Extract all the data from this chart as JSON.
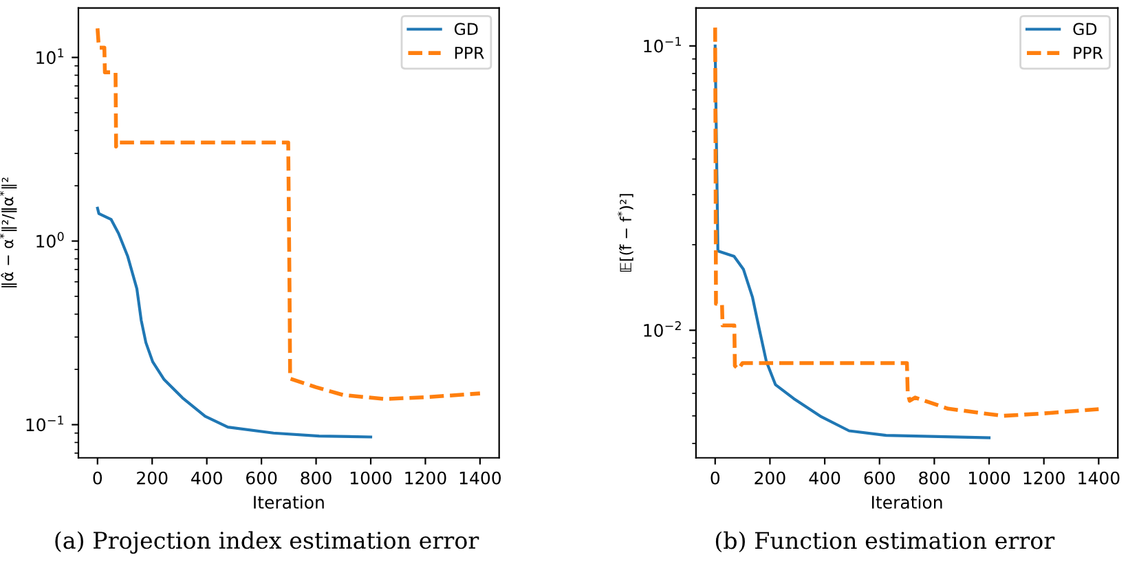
{
  "chart_data": [
    {
      "type": "line",
      "xlabel": "Iteration",
      "ylabel": "‖α̂ − α$^{*}$‖²/‖α$^{*}$‖²",
      "log": "y",
      "grid": false,
      "legend": "top right",
      "xlim": [
        -70,
        1470
      ],
      "xticks": [
        0,
        200,
        400,
        600,
        800,
        1000,
        1200,
        1400
      ],
      "ylim": [
        0.066,
        18.6
      ],
      "yticks": [
        {
          "value": 0.1,
          "label": "10$^{−1}$"
        },
        {
          "value": 1,
          "label": "10$^{0}$"
        },
        {
          "value": 10,
          "label": "10$^{1}$"
        }
      ],
      "series": [
        {
          "name": "GD",
          "color": "#1f77b4",
          "line_style": "solid",
          "x": [
            0,
            5,
            50,
            77,
            110,
            144,
            160,
            177,
            202,
            244,
            311,
            394,
            477,
            644,
            811,
            1000
          ],
          "values": [
            1.51,
            1.41,
            1.31,
            1.1,
            0.83,
            0.55,
            0.37,
            0.28,
            0.22,
            0.176,
            0.14,
            0.111,
            0.097,
            0.09,
            0.0867,
            0.0857
          ]
        },
        {
          "name": "PPR",
          "color": "#ff7f0e",
          "line_style": "dashed",
          "x": [
            0,
            5,
            25,
            27,
            66,
            68,
            70,
            698,
            703,
            705,
            800,
            900,
            1050,
            1200,
            1400
          ],
          "values": [
            14.4,
            11.3,
            11.3,
            8.3,
            8.3,
            3.27,
            3.44,
            3.44,
            0.5,
            0.178,
            0.16,
            0.145,
            0.138,
            0.141,
            0.148
          ]
        }
      ],
      "annotations": [
        "(a) Projection index estimation error"
      ]
    },
    {
      "type": "line",
      "xlabel": "Iteration",
      "ylabel": "𝔼[(f̂ − f$^{*}$)²]",
      "log": "y",
      "grid": false,
      "legend": "top right",
      "xlim": [
        -70,
        1470
      ],
      "xticks": [
        0,
        200,
        400,
        600,
        800,
        1000,
        1200,
        1400
      ],
      "ylim": [
        0.00356,
        0.136
      ],
      "yticks": [
        {
          "value": 0.01,
          "label": "10$^{−2}$"
        },
        {
          "value": 0.1,
          "label": "10$^{−1}$"
        }
      ],
      "series": [
        {
          "name": "GD",
          "color": "#1f77b4",
          "line_style": "solid",
          "x": [
            0,
            10,
            69,
            103,
            136,
            161,
            187,
            220,
            287,
            388,
            489,
            624,
            1000
          ],
          "values": [
            0.1,
            0.019,
            0.0182,
            0.0164,
            0.0131,
            0.0101,
            0.00776,
            0.00644,
            0.00575,
            0.00496,
            0.00443,
            0.00427,
            0.00419
          ]
        },
        {
          "name": "PPR",
          "color": "#ff7f0e",
          "line_style": "dashed",
          "x": [
            0,
            3,
            25,
            27,
            70,
            72,
            85,
            100,
            700,
            703,
            710,
            730,
            850,
            1050,
            1200,
            1400
          ],
          "values": [
            0.116,
            0.0124,
            0.0124,
            0.0104,
            0.0104,
            0.0075,
            0.0073,
            0.00767,
            0.00767,
            0.006,
            0.00565,
            0.0058,
            0.0053,
            0.005,
            0.0051,
            0.00528
          ]
        }
      ],
      "annotations": [
        "(b) Function estimation error"
      ]
    }
  ]
}
